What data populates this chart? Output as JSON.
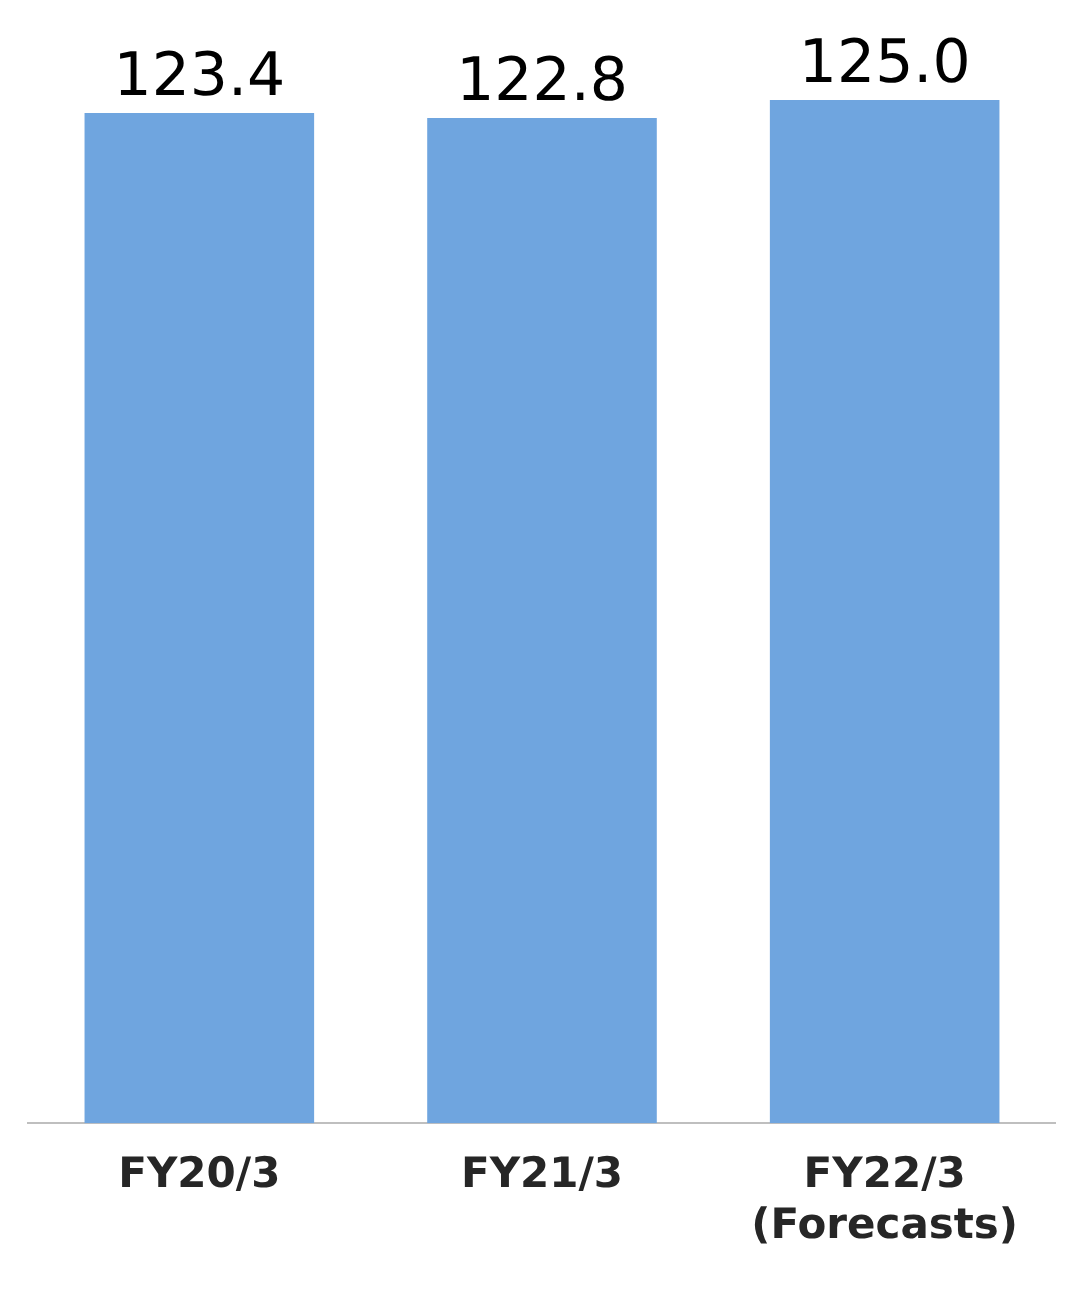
{
  "chart_data": {
    "type": "bar",
    "categories": [
      "FY20/3",
      "FY21/3",
      "FY22/3\n(Forecasts)"
    ],
    "values": [
      123.4,
      122.8,
      125.0
    ],
    "value_labels": [
      "123.4",
      "122.8",
      "125.0"
    ],
    "color": "#6fa5df",
    "ylim": [
      0,
      125
    ],
    "grid": false,
    "legend": false
  }
}
